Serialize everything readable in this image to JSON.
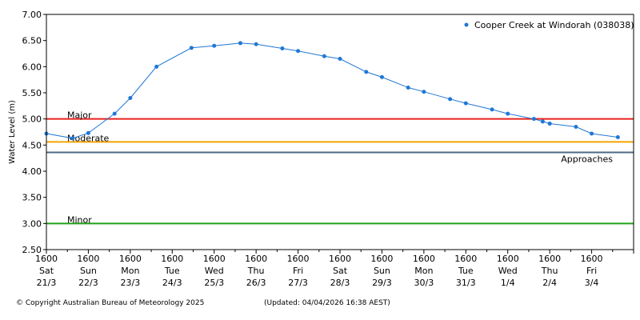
{
  "chart_data": {
    "type": "line",
    "ylabel": "Water Level (m)",
    "ylim": [
      2.5,
      7.0
    ],
    "yticks": [
      "7.00",
      "6.50",
      "6.00",
      "5.50",
      "5.00",
      "4.50",
      "4.00",
      "3.50",
      "3.00",
      "2.50"
    ],
    "grid": false,
    "legend_position": "top-right",
    "x_range": [
      "2025-03-21 16:00",
      "2025-04-04 16:00"
    ],
    "x_ticks": [
      {
        "time": "1600",
        "day": "Sat",
        "date": "21/3"
      },
      {
        "time": "1600",
        "day": "Sun",
        "date": "22/3"
      },
      {
        "time": "1600",
        "day": "Mon",
        "date": "23/3"
      },
      {
        "time": "1600",
        "day": "Tue",
        "date": "24/3"
      },
      {
        "time": "1600",
        "day": "Wed",
        "date": "25/3"
      },
      {
        "time": "1600",
        "day": "Thu",
        "date": "26/3"
      },
      {
        "time": "1600",
        "day": "Fri",
        "date": "27/3"
      },
      {
        "time": "1600",
        "day": "Sat",
        "date": "28/3"
      },
      {
        "time": "1600",
        "day": "Sun",
        "date": "29/3"
      },
      {
        "time": "1600",
        "day": "Mon",
        "date": "30/3"
      },
      {
        "time": "1600",
        "day": "Tue",
        "date": "31/3"
      },
      {
        "time": "1600",
        "day": "Wed",
        "date": "1/4"
      },
      {
        "time": "1600",
        "day": "Thu",
        "date": "2/4"
      },
      {
        "time": "1600",
        "day": "Fri",
        "date": "3/4"
      }
    ],
    "series": [
      {
        "name": "Cooper Creek at Windorah (038038)",
        "color": "#1f77d4",
        "points": [
          {
            "x": "2025-03-21 16:00",
            "y": 4.72
          },
          {
            "x": "2025-03-22 07:00",
            "y": 4.63
          },
          {
            "x": "2025-03-22 16:00",
            "y": 4.73
          },
          {
            "x": "2025-03-23 07:00",
            "y": 5.1
          },
          {
            "x": "2025-03-23 16:00",
            "y": 5.4
          },
          {
            "x": "2025-03-24 07:00",
            "y": 6.0
          },
          {
            "x": "2025-03-25 03:00",
            "y": 6.36
          },
          {
            "x": "2025-03-25 16:00",
            "y": 6.4
          },
          {
            "x": "2025-03-26 07:00",
            "y": 6.45
          },
          {
            "x": "2025-03-26 16:00",
            "y": 6.43
          },
          {
            "x": "2025-03-27 07:00",
            "y": 6.35
          },
          {
            "x": "2025-03-27 16:00",
            "y": 6.3
          },
          {
            "x": "2025-03-28 07:00",
            "y": 6.2
          },
          {
            "x": "2025-03-28 16:00",
            "y": 6.15
          },
          {
            "x": "2025-03-29 07:00",
            "y": 5.9
          },
          {
            "x": "2025-03-29 16:00",
            "y": 5.8
          },
          {
            "x": "2025-03-30 07:00",
            "y": 5.6
          },
          {
            "x": "2025-03-30 16:00",
            "y": 5.52
          },
          {
            "x": "2025-03-31 07:00",
            "y": 5.38
          },
          {
            "x": "2025-03-31 16:00",
            "y": 5.3
          },
          {
            "x": "2025-04-01 07:00",
            "y": 5.18
          },
          {
            "x": "2025-04-01 16:00",
            "y": 5.1
          },
          {
            "x": "2025-04-02 07:00",
            "y": 5.0
          },
          {
            "x": "2025-04-02 12:00",
            "y": 4.95
          },
          {
            "x": "2025-04-02 16:00",
            "y": 4.91
          },
          {
            "x": "2025-04-03 07:00",
            "y": 4.85
          },
          {
            "x": "2025-04-03 16:00",
            "y": 4.72
          },
          {
            "x": "2025-04-04 07:00",
            "y": 4.65
          }
        ]
      }
    ],
    "thresholds": [
      {
        "label": "Major",
        "value": 5.0,
        "color": "#e8211c",
        "label_side": "left"
      },
      {
        "label": "Moderate",
        "value": 4.56,
        "color": "#f5a300",
        "label_side": "left"
      },
      {
        "label": "Approaches",
        "value": 4.36,
        "color": "#4d6b85",
        "label_side": "right"
      },
      {
        "label": "Minor",
        "value": 3.0,
        "color": "#22a31a",
        "label_side": "left"
      }
    ]
  },
  "footer": {
    "copyright": "© Copyright Australian Bureau of Meteorology 2025",
    "updated": "(Updated: 04/04/2026 16:38 AEST)"
  }
}
